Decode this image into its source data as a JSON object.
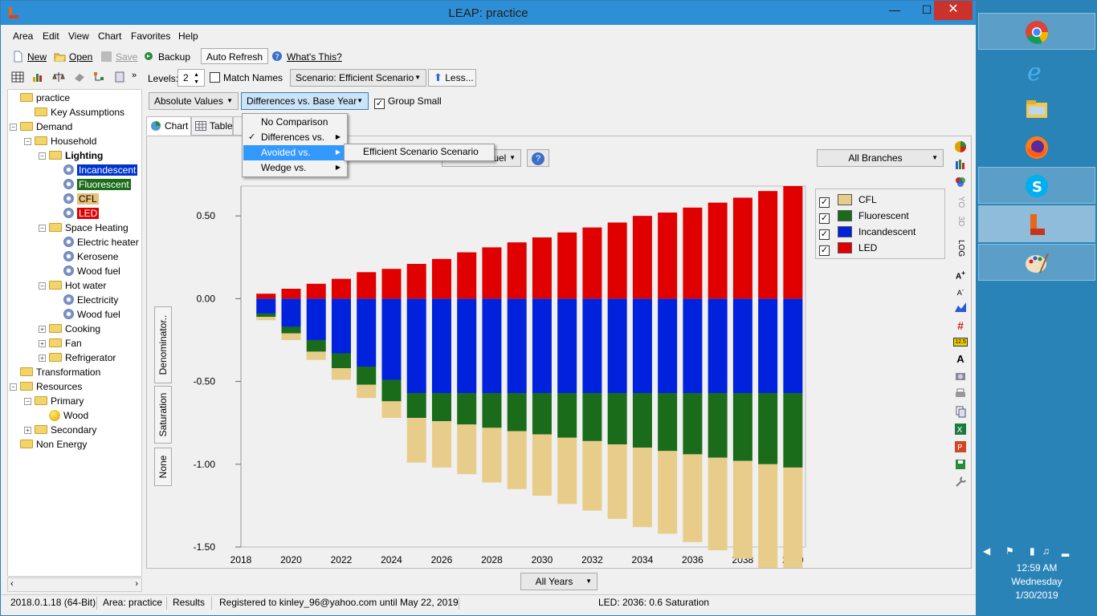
{
  "window": {
    "title": "LEAP: practice",
    "minimize": "—",
    "maximize": "☐",
    "close": "✕"
  },
  "menu": [
    "Area",
    "Edit",
    "View",
    "Chart",
    "Favorites",
    "Help"
  ],
  "toolbar": {
    "new": "New",
    "open": "Open",
    "save": "Save",
    "backup": "Backup",
    "auto_refresh": "Auto Refresh",
    "whats_this": "What's This?"
  },
  "controls": {
    "levels_label": "Levels:",
    "levels_value": "2",
    "match_names": "Match Names",
    "scenario": "Scenario: Efficient Scenario",
    "less": "Less...",
    "absolute_values": "Absolute Values",
    "differences": "Differences vs. Base Year",
    "group_small": "Group Small",
    "fuel": "Fuel",
    "help": "?",
    "all_branches": "All Branches",
    "all_years": "All Years"
  },
  "dropdown": {
    "items": [
      "No Comparison",
      "Differences vs.",
      "Avoided vs.",
      "Wedge vs."
    ],
    "submenu_item": "Efficient Scenario Scenario"
  },
  "tabs": [
    "Chart",
    "Table"
  ],
  "vtabs": [
    "Denominator..",
    "Saturation",
    "None"
  ],
  "tree": [
    {
      "label": "practice",
      "level": 0,
      "type": "folder",
      "pm": ""
    },
    {
      "label": "Key Assumptions",
      "level": 1,
      "type": "folder",
      "pm": ""
    },
    {
      "label": "Demand",
      "level": 0,
      "type": "folder",
      "pm": "−"
    },
    {
      "label": "Household",
      "level": 1,
      "type": "folder",
      "pm": "−"
    },
    {
      "label": "Lighting",
      "level": 2,
      "type": "folder",
      "pm": "−",
      "bold": true
    },
    {
      "label": "Incandescent",
      "level": 3,
      "type": "gear",
      "pm": "",
      "highlight": "#0033cc",
      "fg": "#ffffff"
    },
    {
      "label": "Fluorescent",
      "level": 3,
      "type": "gear",
      "pm": "",
      "highlight": "#1a6b1a",
      "fg": "#ffffff"
    },
    {
      "label": "CFL",
      "level": 3,
      "type": "gear",
      "pm": "",
      "highlight": "#e8c27a",
      "fg": "#000000"
    },
    {
      "label": "LED",
      "level": 3,
      "type": "gear",
      "pm": "",
      "highlight": "#dd0000",
      "fg": "#ffffff"
    },
    {
      "label": "Space Heating",
      "level": 2,
      "type": "folder",
      "pm": "−"
    },
    {
      "label": "Electric heater",
      "level": 3,
      "type": "gear",
      "pm": ""
    },
    {
      "label": "Kerosene",
      "level": 3,
      "type": "gear",
      "pm": ""
    },
    {
      "label": "Wood fuel",
      "level": 3,
      "type": "gear",
      "pm": ""
    },
    {
      "label": "Hot water",
      "level": 2,
      "type": "folder",
      "pm": "−"
    },
    {
      "label": "Electricity",
      "level": 3,
      "type": "gear",
      "pm": ""
    },
    {
      "label": "Wood fuel",
      "level": 3,
      "type": "gear",
      "pm": ""
    },
    {
      "label": "Cooking",
      "level": 2,
      "type": "folder",
      "pm": "+"
    },
    {
      "label": "Fan",
      "level": 2,
      "type": "folder",
      "pm": "+"
    },
    {
      "label": "Refrigerator",
      "level": 2,
      "type": "folder",
      "pm": "+"
    },
    {
      "label": "Transformation",
      "level": 0,
      "type": "folder",
      "pm": ""
    },
    {
      "label": "Resources",
      "level": 0,
      "type": "folder",
      "pm": "−"
    },
    {
      "label": "Primary",
      "level": 1,
      "type": "folder",
      "pm": "−"
    },
    {
      "label": "Wood",
      "level": 2,
      "type": "ball",
      "pm": ""
    },
    {
      "label": "Secondary",
      "level": 1,
      "type": "folder",
      "pm": "+"
    },
    {
      "label": "Non Energy",
      "level": 0,
      "type": "folder",
      "pm": ""
    }
  ],
  "status": {
    "version": "2018.0.1.18 (64-Bit)",
    "area": "Area: practice",
    "results": "Results",
    "registered": "Registered to kinley_96@yahoo.com until May 22, 2019",
    "info": "LED: 2036: 0.6 Saturation"
  },
  "right_tools": [
    "YO",
    "3D",
    "LOG"
  ],
  "taskbar": {
    "time": "12:59 AM",
    "day": "Wednesday",
    "date": "1/30/2019"
  },
  "chart_data": {
    "type": "bar",
    "stacked": true,
    "x": [
      2019,
      2020,
      2021,
      2022,
      2023,
      2024,
      2025,
      2026,
      2027,
      2028,
      2029,
      2030,
      2031,
      2032,
      2033,
      2034,
      2035,
      2036,
      2037,
      2038,
      2039,
      2040
    ],
    "x_tick_labels": [
      "2018",
      "2020",
      "2022",
      "2024",
      "2026",
      "2028",
      "2030",
      "2032",
      "2034",
      "2036",
      "2038",
      "2040"
    ],
    "y_ticks": [
      "0.50",
      "0.00",
      "-0.50",
      "-1.00",
      "-1.50"
    ],
    "ylim": [
      -1.5,
      0.68
    ],
    "grid": false,
    "legend_position": "right",
    "series": [
      {
        "name": "CFL",
        "color": "#e8cd8a",
        "values": [
          -0.02,
          -0.04,
          -0.05,
          -0.07,
          -0.08,
          -0.1,
          -0.27,
          -0.28,
          -0.3,
          -0.33,
          -0.35,
          -0.37,
          -0.4,
          -0.42,
          -0.45,
          -0.48,
          -0.5,
          -0.53,
          -0.56,
          -0.59,
          -0.63,
          -0.66
        ]
      },
      {
        "name": "Fluorescent",
        "color": "#1a6b1a",
        "values": [
          -0.02,
          -0.04,
          -0.07,
          -0.09,
          -0.11,
          -0.13,
          -0.15,
          -0.17,
          -0.19,
          -0.21,
          -0.23,
          -0.25,
          -0.27,
          -0.29,
          -0.31,
          -0.33,
          -0.35,
          -0.37,
          -0.39,
          -0.41,
          -0.43,
          -0.45
        ]
      },
      {
        "name": "Incandescent",
        "color": "#0022dd",
        "values": [
          -0.09,
          -0.17,
          -0.25,
          -0.33,
          -0.41,
          -0.49,
          -0.57,
          -0.57,
          -0.57,
          -0.57,
          -0.57,
          -0.57,
          -0.57,
          -0.57,
          -0.57,
          -0.57,
          -0.57,
          -0.57,
          -0.57,
          -0.57,
          -0.57,
          -0.57
        ]
      },
      {
        "name": "LED",
        "color": "#e00000",
        "values": [
          0.03,
          0.06,
          0.09,
          0.12,
          0.16,
          0.18,
          0.21,
          0.24,
          0.28,
          0.31,
          0.34,
          0.37,
          0.4,
          0.43,
          0.46,
          0.5,
          0.52,
          0.55,
          0.58,
          0.61,
          0.65,
          0.68
        ]
      }
    ]
  }
}
